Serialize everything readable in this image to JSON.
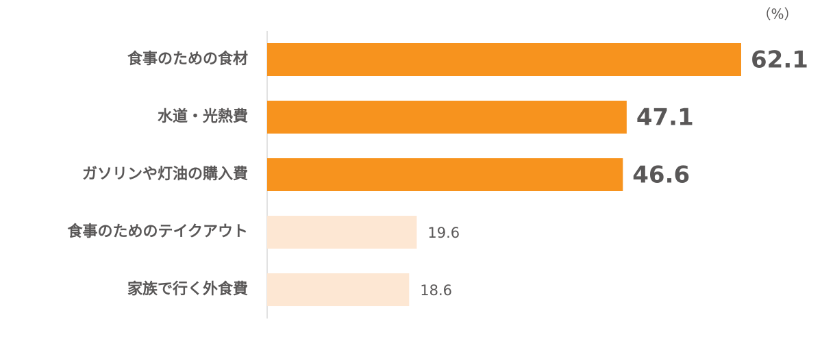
{
  "chart_data": {
    "type": "bar",
    "orientation": "horizontal",
    "unit": "（%）",
    "categories": [
      "食事のための食材",
      "水道・光熱費",
      "ガソリンや灯油の購入費",
      "食事のためのテイクアウト",
      "家族で行く外食費"
    ],
    "values": [
      62.1,
      47.1,
      46.6,
      19.6,
      18.6
    ],
    "colors": [
      "#f7931e",
      "#f7931e",
      "#f7931e",
      "#fde7d3",
      "#fde7d3"
    ]
  }
}
